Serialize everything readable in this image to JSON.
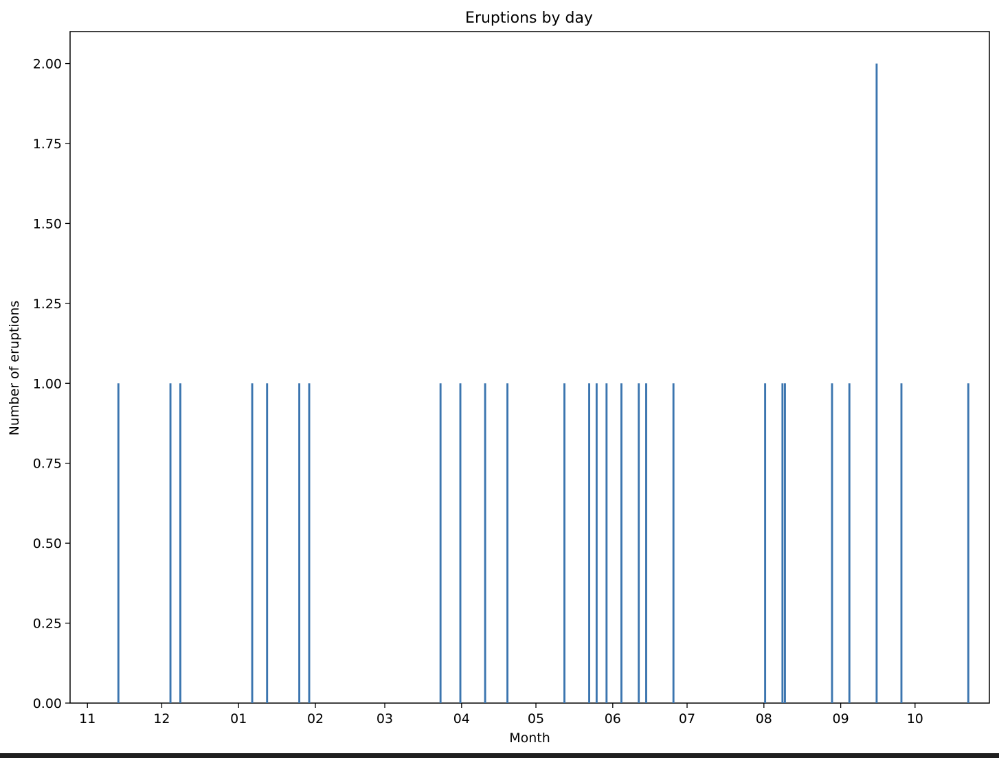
{
  "chart_data": {
    "type": "bar",
    "title": "Eruptions by day",
    "xlabel": "Month",
    "ylabel": "Number of eruptions",
    "ylim": [
      0,
      2.1
    ],
    "yticks": [
      "0.00",
      "0.25",
      "0.50",
      "0.75",
      "1.00",
      "1.25",
      "1.50",
      "1.75",
      "2.00"
    ],
    "xlim": [
      "2017-10-25",
      "2018-10-31"
    ],
    "xticks": [
      {
        "date": "2017-11-01",
        "label": "11"
      },
      {
        "date": "2017-12-01",
        "label": "12"
      },
      {
        "date": "2018-01-01",
        "label": "01"
      },
      {
        "date": "2018-02-01",
        "label": "02"
      },
      {
        "date": "2018-03-01",
        "label": "03"
      },
      {
        "date": "2018-04-01",
        "label": "04"
      },
      {
        "date": "2018-05-01",
        "label": "05"
      },
      {
        "date": "2018-06-01",
        "label": "06"
      },
      {
        "date": "2018-07-01",
        "label": "07"
      },
      {
        "date": "2018-08-01",
        "label": "08"
      },
      {
        "date": "2018-09-01",
        "label": "09"
      },
      {
        "date": "2018-10-01",
        "label": "10"
      }
    ],
    "grid": false,
    "series": [
      {
        "color": "#3b75af",
        "points": [
          {
            "date": "2017-11-13",
            "value": 1
          },
          {
            "date": "2017-12-04",
            "value": 1
          },
          {
            "date": "2017-12-08",
            "value": 1
          },
          {
            "date": "2018-01-06",
            "value": 1
          },
          {
            "date": "2018-01-12",
            "value": 1
          },
          {
            "date": "2018-01-25",
            "value": 1
          },
          {
            "date": "2018-01-29",
            "value": 1
          },
          {
            "date": "2018-03-23",
            "value": 1
          },
          {
            "date": "2018-03-31",
            "value": 1
          },
          {
            "date": "2018-04-10",
            "value": 1
          },
          {
            "date": "2018-04-19",
            "value": 1
          },
          {
            "date": "2018-05-12",
            "value": 1
          },
          {
            "date": "2018-05-22",
            "value": 1
          },
          {
            "date": "2018-05-25",
            "value": 1
          },
          {
            "date": "2018-05-29",
            "value": 1
          },
          {
            "date": "2018-06-04",
            "value": 1
          },
          {
            "date": "2018-06-11",
            "value": 1
          },
          {
            "date": "2018-06-14",
            "value": 1
          },
          {
            "date": "2018-06-25",
            "value": 1
          },
          {
            "date": "2018-08-01",
            "value": 1
          },
          {
            "date": "2018-08-08",
            "value": 1
          },
          {
            "date": "2018-08-09",
            "value": 1
          },
          {
            "date": "2018-08-28",
            "value": 1
          },
          {
            "date": "2018-09-04",
            "value": 1
          },
          {
            "date": "2018-09-15",
            "value": 2
          },
          {
            "date": "2018-09-25",
            "value": 1
          },
          {
            "date": "2018-10-22",
            "value": 1
          }
        ]
      }
    ]
  }
}
